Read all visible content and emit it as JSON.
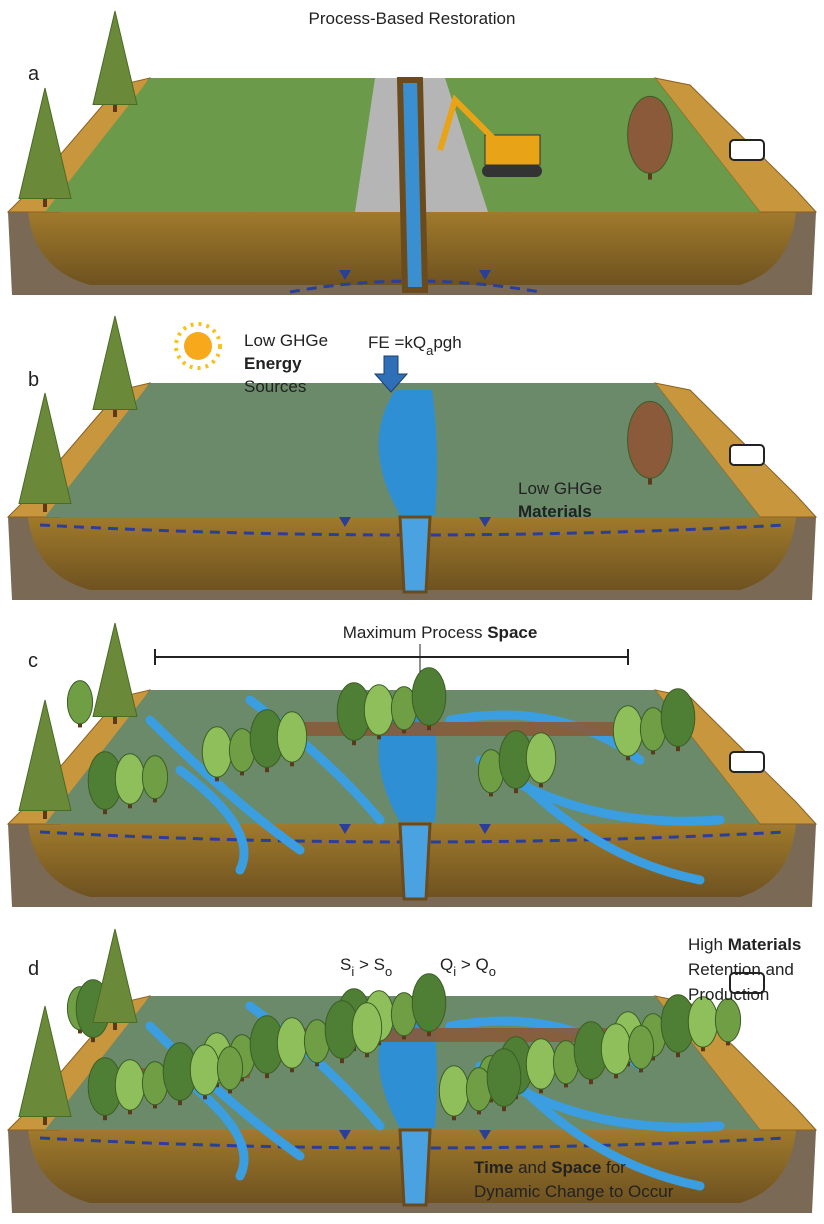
{
  "title": "Process-Based Restoration",
  "panels": [
    {
      "label": "a"
    },
    {
      "label": "b",
      "energy": [
        "Low GHGe",
        "Energy",
        "Sources"
      ],
      "formula": [
        "FE =kQ",
        "a",
        "pgh"
      ],
      "materials": [
        "Low GHGe",
        "Materials"
      ]
    },
    {
      "label": "c",
      "space": [
        "Maximum Process ",
        "Space"
      ]
    },
    {
      "label": "d",
      "sediment": [
        "S",
        "i",
        " > S",
        "o"
      ],
      "flow": [
        "Q",
        "i",
        " > Q",
        "o"
      ],
      "retention": [
        "High ",
        "Materials",
        "Retention and",
        "Production"
      ],
      "change": [
        "Time",
        " and ",
        "Space",
        " for",
        "Dynamic Change to Occur"
      ]
    }
  ]
}
